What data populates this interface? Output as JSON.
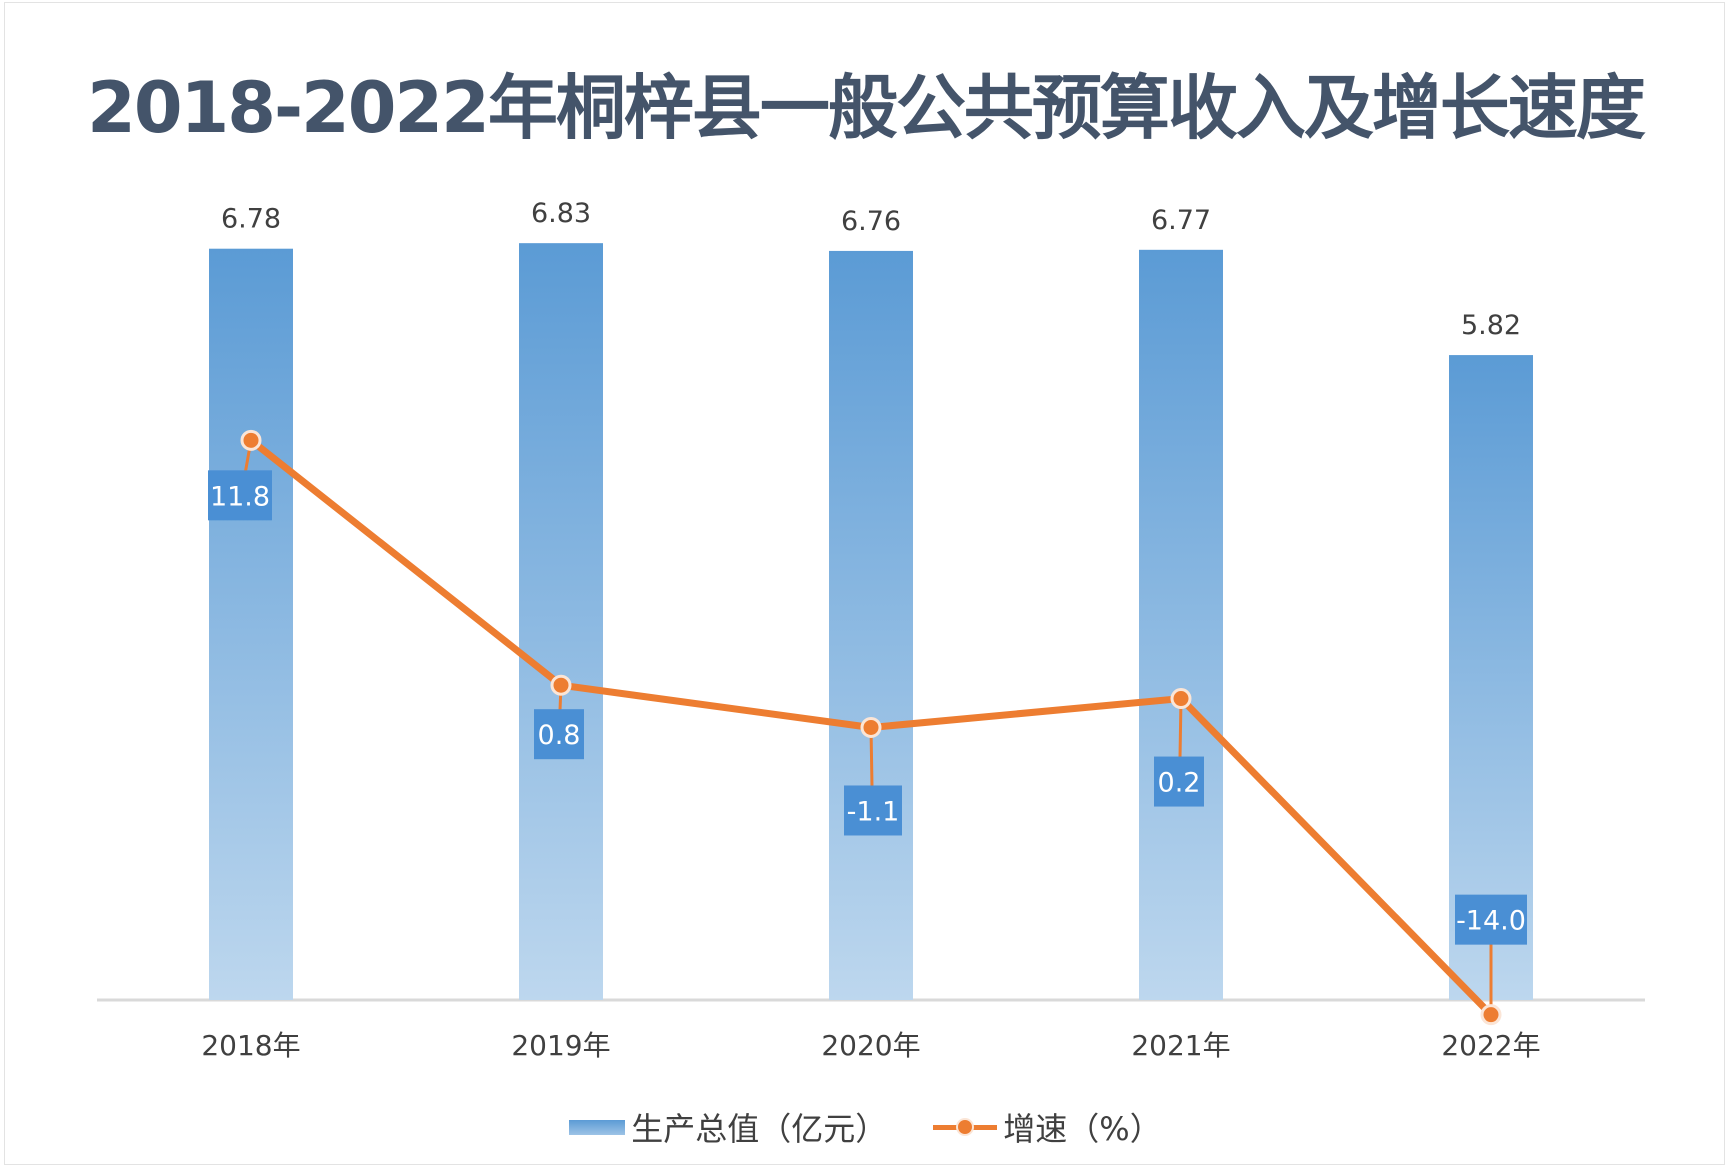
{
  "chart_data": {
    "type": "bar",
    "title": "2018-2022年桐梓县一般公共预算收入及增长速度",
    "categories": [
      "2018年",
      "2019年",
      "2020年",
      "2021年",
      "2022年"
    ],
    "series": [
      {
        "name": "生产总值（亿元）",
        "type": "bar",
        "values": [
          6.78,
          6.83,
          6.76,
          6.77,
          5.82
        ]
      },
      {
        "name": "增速（%）",
        "type": "line",
        "values": [
          11.8,
          0.8,
          -1.1,
          0.2,
          -14.0
        ]
      }
    ],
    "bar_labels": [
      "6.78",
      "6.83",
      "6.76",
      "6.77",
      "5.82"
    ],
    "line_labels": [
      "11.8",
      "0.8",
      "-1.1",
      "0.2",
      "-14.0"
    ],
    "grid": false,
    "legend_position": "bottom",
    "colors": {
      "bar_top": "#5b9bd5",
      "bar_bottom": "#bdd7ee",
      "line": "#ed7d31",
      "label_box": "#4a8fd4",
      "title": "#44546a"
    }
  }
}
